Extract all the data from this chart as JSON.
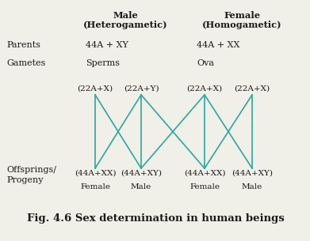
{
  "bg_color": "#f0efe8",
  "line_color": "#2aa8a0",
  "text_color": "#1a1a1a",
  "title": "Fig. 4.6 Sex determination in human beings",
  "title_fontsize": 9.5,
  "male_header_line1": "Male",
  "male_header_line2": "(Heterogametic)",
  "female_header_line1": "Female",
  "female_header_line2": "(Homogametic)",
  "parents_label": "Parents",
  "gametes_label": "Gametes",
  "offsprings_label1": "Offsprings/",
  "offsprings_label2": "Progeny",
  "male_parent": "44A + XY",
  "female_parent": "44A + XX",
  "sperm_label": "Sperms",
  "ova_label": "Ova",
  "sperm1": "(22A+X)",
  "sperm2": "(22A+Y)",
  "ova1": "(22A+X)",
  "ova2": "(22A+X)",
  "offspring1": "(44A+XX)",
  "offspring2": "(44A+XY)",
  "offspring3": "(44A+XX)",
  "offspring4": "(44A+XY)",
  "label1": "Female",
  "label2": "Male",
  "label3": "Female",
  "label4": "Male",
  "line_width": 1.2
}
